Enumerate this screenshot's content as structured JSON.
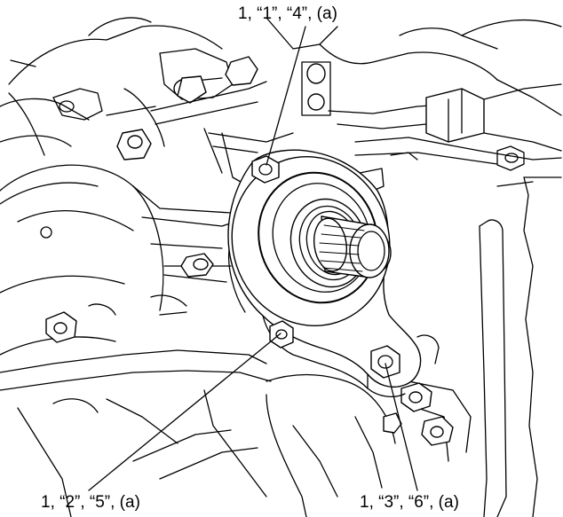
{
  "callouts": {
    "top": "1, “1”, “4”, (a)",
    "bottom_left": "1, “2”, “5”, (a)",
    "bottom_right": "1, “3”, “6”, (a)"
  },
  "colors": {
    "line": "#000000",
    "background": "#ffffff"
  }
}
